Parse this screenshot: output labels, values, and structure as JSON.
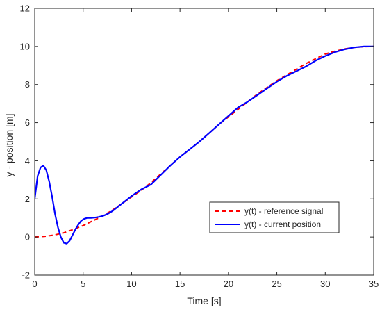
{
  "chart_data": {
    "type": "line",
    "title": "",
    "xlabel": "Time [s]",
    "ylabel": "y - position [m]",
    "xlim": [
      0,
      35
    ],
    "ylim": [
      -2,
      12
    ],
    "xticks": [
      0,
      5,
      10,
      15,
      20,
      25,
      30,
      35
    ],
    "yticks": [
      -2,
      0,
      2,
      4,
      6,
      8,
      10,
      12
    ],
    "grid": false,
    "legend_position": "bottom-right",
    "series": [
      {
        "name": "y(t) - reference signal",
        "color": "#ff0000",
        "line_style": "dashed",
        "x": [
          0,
          1,
          2,
          3,
          4,
          5,
          6,
          7,
          8,
          9,
          10,
          11,
          12,
          13,
          14,
          15,
          16,
          17,
          18,
          19,
          20,
          21,
          22,
          23,
          24,
          25,
          26,
          27,
          28,
          29,
          30,
          31,
          32,
          33,
          34,
          35
        ],
        "y": [
          0,
          0.03,
          0.1,
          0.22,
          0.4,
          0.6,
          0.85,
          1.1,
          1.4,
          1.75,
          2.1,
          2.45,
          2.85,
          3.3,
          3.75,
          4.2,
          4.6,
          5.0,
          5.45,
          5.9,
          6.3,
          6.7,
          7.1,
          7.5,
          7.85,
          8.2,
          8.5,
          8.8,
          9.1,
          9.35,
          9.6,
          9.75,
          9.87,
          9.95,
          9.99,
          10.0
        ]
      },
      {
        "name": "y(t) - current position",
        "color": "#0000ff",
        "line_style": "solid",
        "x": [
          0,
          0.3,
          0.6,
          0.9,
          1.2,
          1.5,
          1.8,
          2.1,
          2.4,
          2.7,
          3.0,
          3.3,
          3.6,
          3.9,
          4.2,
          4.5,
          4.8,
          5.1,
          5.4,
          5.8,
          6.2,
          6.6,
          7.0,
          7.5,
          8,
          9,
          10,
          11,
          12,
          13,
          14,
          15,
          16,
          17,
          18,
          19,
          20,
          21,
          22,
          23,
          24,
          25,
          26,
          27,
          28,
          29,
          30,
          31,
          32,
          33,
          34,
          35
        ],
        "y": [
          2.0,
          3.2,
          3.65,
          3.75,
          3.5,
          2.9,
          2.1,
          1.2,
          0.5,
          0.0,
          -0.3,
          -0.35,
          -0.2,
          0.1,
          0.4,
          0.65,
          0.85,
          0.95,
          1.0,
          1.0,
          1.02,
          1.05,
          1.1,
          1.2,
          1.35,
          1.75,
          2.15,
          2.5,
          2.75,
          3.25,
          3.75,
          4.2,
          4.6,
          5.0,
          5.45,
          5.9,
          6.35,
          6.8,
          7.1,
          7.45,
          7.8,
          8.15,
          8.45,
          8.7,
          8.95,
          9.25,
          9.5,
          9.7,
          9.85,
          9.95,
          10.0,
          10.0
        ]
      }
    ]
  }
}
